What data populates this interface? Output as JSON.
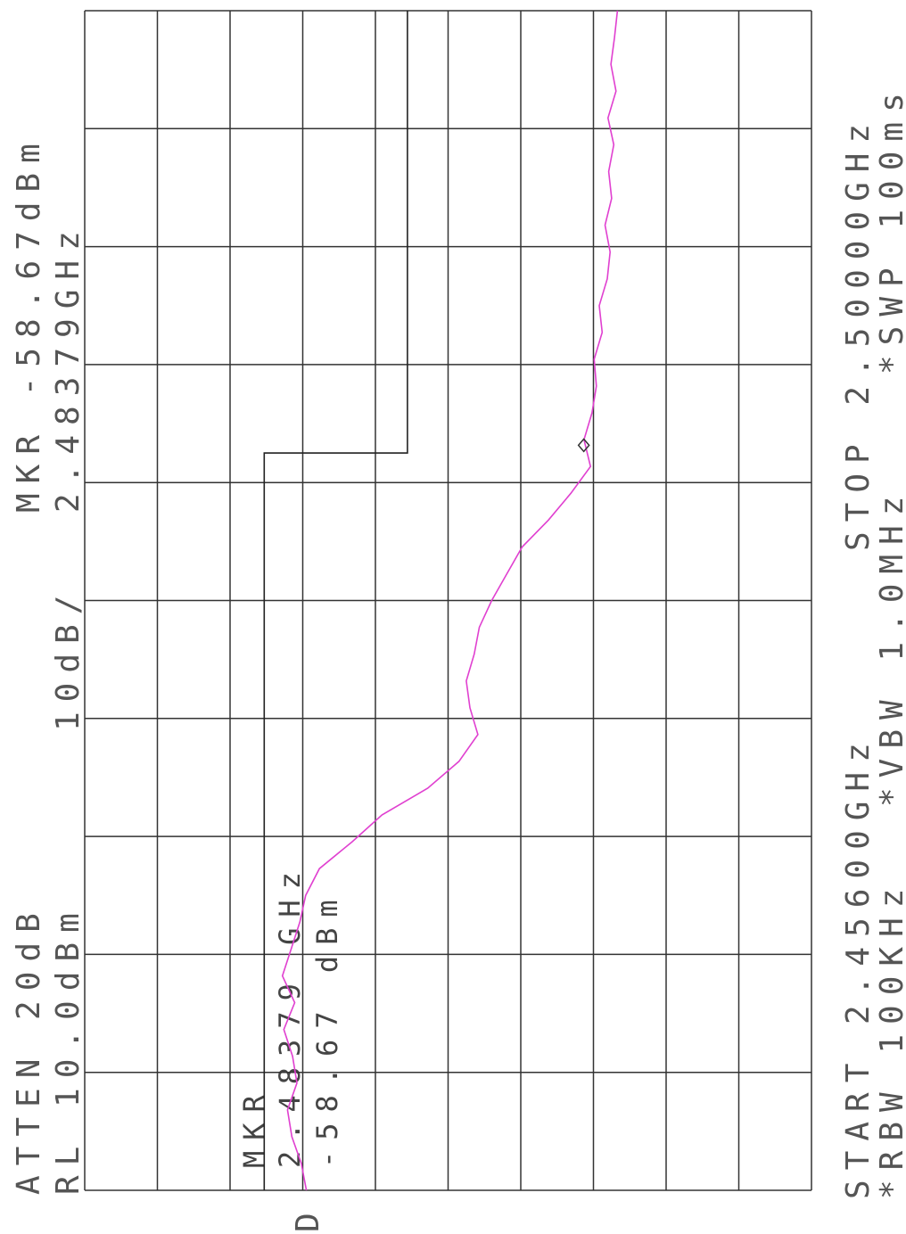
{
  "chart_data": {
    "type": "line",
    "title": "MKR -58.67dBm",
    "subtitle": "2.48379GHz",
    "atten": "ATTEN 20dB",
    "ref_level": "RL 10.0dBm",
    "scale": "10dB/",
    "start": "START 2.45600GHz",
    "stop": "STOP 2.50000GHz",
    "rbw": "*RBW 100KHz",
    "vbw": "*VBW 1.0MHz",
    "sweep": "*SWP 100ms",
    "display_mark": "D",
    "marker_text": [
      "MKR",
      "2.48379 GHz",
      "-58.67 dBm"
    ],
    "marker": {
      "x": 2.48379,
      "value": -58.67
    },
    "xlim": [
      2.456,
      2.5
    ],
    "ylim": [
      -90,
      10
    ],
    "xticks": [
      2.456,
      2.4604,
      2.4648,
      2.4692,
      2.4736,
      2.478,
      2.4824,
      2.4868,
      2.4912,
      2.4956,
      2.5
    ],
    "yticks": [
      -90,
      -80,
      -70,
      -60,
      -50,
      -40,
      -30,
      -20,
      -10,
      0,
      10
    ],
    "grid": true,
    "limit_line": {
      "x": [
        2.456,
        2.4835,
        2.4835,
        2.5
      ],
      "values": [
        -14.7,
        -14.7,
        -34.4,
        -34.4
      ],
      "color": "#222222"
    },
    "x": [
      2.456,
      2.457,
      2.458,
      2.459,
      2.46,
      2.461,
      2.462,
      2.463,
      2.464,
      2.465,
      2.466,
      2.467,
      2.468,
      2.469,
      2.47,
      2.471,
      2.472,
      2.473,
      2.474,
      2.475,
      2.476,
      2.477,
      2.478,
      2.479,
      2.48,
      2.481,
      2.482,
      2.483,
      2.484,
      2.485,
      2.486,
      2.487,
      2.488,
      2.489,
      2.49,
      2.491,
      2.492,
      2.493,
      2.494,
      2.495,
      2.496,
      2.497,
      2.498,
      2.499,
      2.5
    ],
    "series": [
      {
        "color": "#e040d0",
        "values": [
          -20.5,
          -19.8,
          -18.5,
          -17.9,
          -19.2,
          -18.6,
          -17.4,
          -18.9,
          -17.2,
          -18.4,
          -19.6,
          -20.4,
          -22.3,
          -26.8,
          -30.9,
          -37.2,
          -41.5,
          -44.1,
          -43.0,
          -42.5,
          -43.6,
          -44.3,
          -46.0,
          -48.1,
          -50.2,
          -53.8,
          -56.9,
          -59.6,
          -58.7,
          -59.8,
          -60.4,
          -60.1,
          -61.2,
          -60.8,
          -61.9,
          -62.3,
          -61.6,
          -62.5,
          -62.1,
          -62.8,
          -62.0,
          -63.1,
          -62.4,
          -62.9,
          -63.3
        ]
      }
    ]
  }
}
